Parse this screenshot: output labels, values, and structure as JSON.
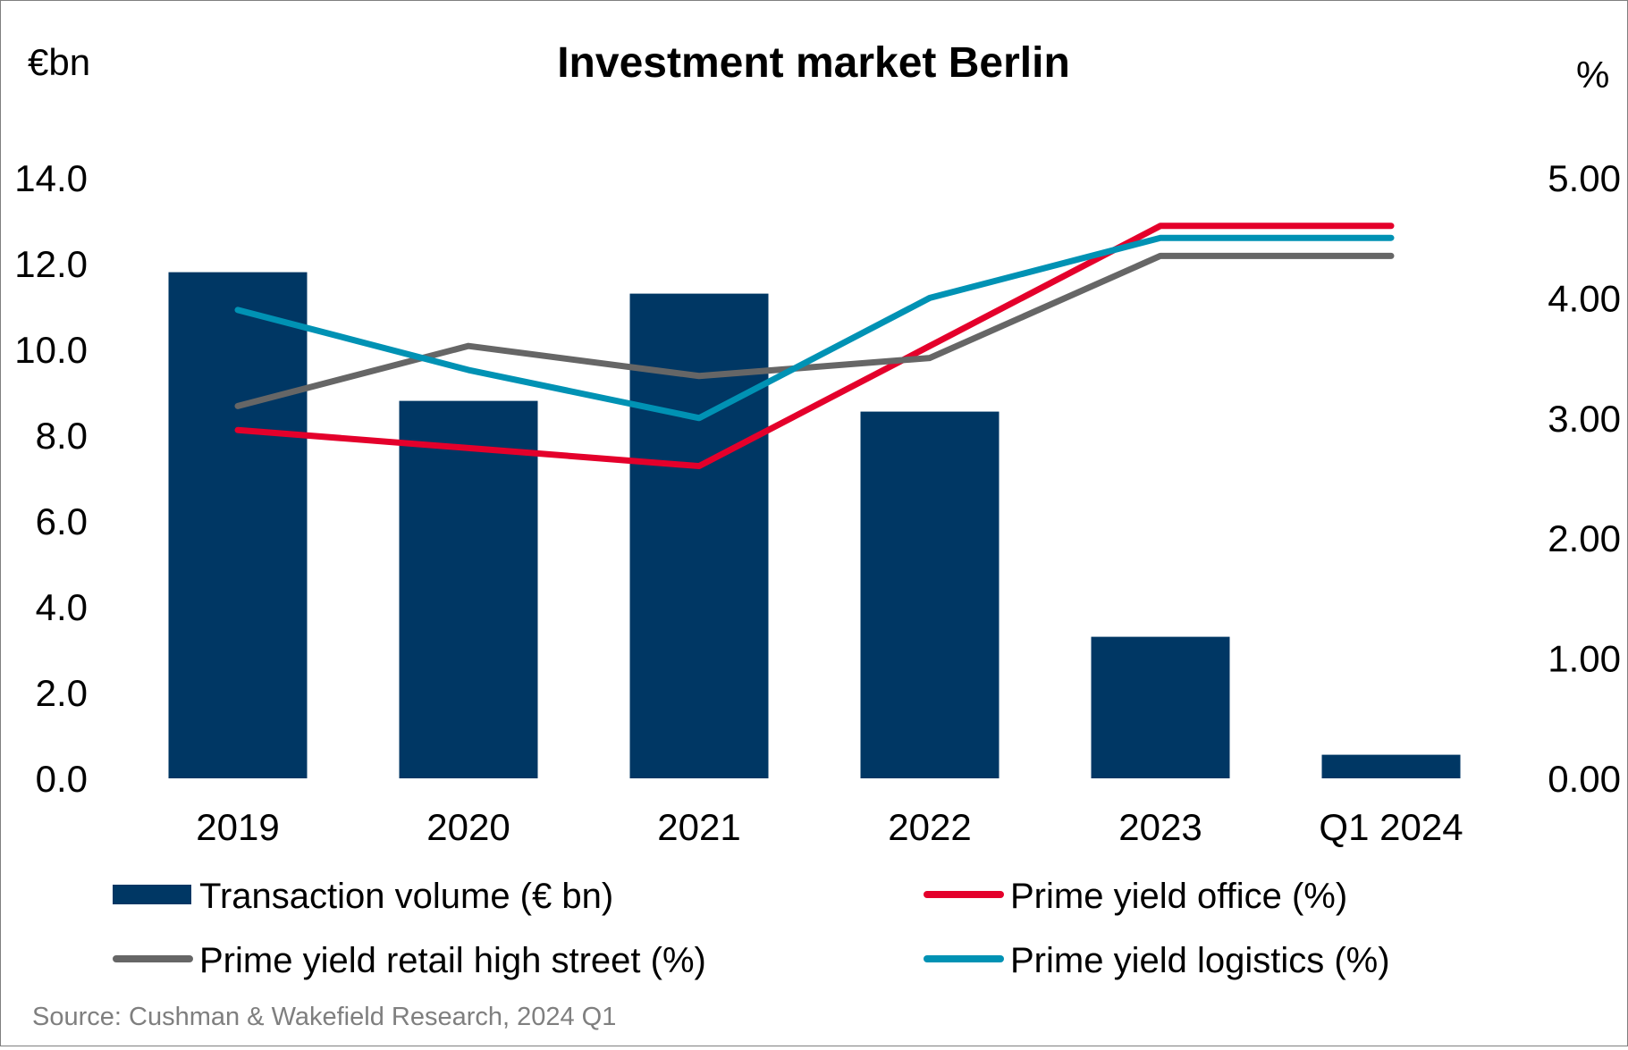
{
  "chart_data": {
    "type": "bar",
    "title": "Investment market Berlin",
    "y_left_unit": "€bn",
    "y_right_unit": "%",
    "categories": [
      "2019",
      "2020",
      "2021",
      "2022",
      "2023",
      "Q1 2024"
    ],
    "y_left": {
      "range": [
        0,
        14
      ],
      "ticks": [
        "0.0",
        "2.0",
        "4.0",
        "6.0",
        "8.0",
        "10.0",
        "12.0",
        "14.0"
      ]
    },
    "y_right": {
      "range": [
        0,
        5
      ],
      "ticks": [
        "0.00",
        "1.00",
        "2.00",
        "3.00",
        "4.00",
        "5.00"
      ]
    },
    "bars": {
      "name": "Transaction volume (€ bn)",
      "color": "#003764",
      "axis": "left",
      "values": [
        11.8,
        8.8,
        11.3,
        8.55,
        3.3,
        0.55
      ]
    },
    "lines": [
      {
        "name": "Prime yield office (%)",
        "color": "#e4002b",
        "axis": "right",
        "values": [
          2.9,
          2.75,
          2.6,
          3.6,
          4.6,
          4.6
        ]
      },
      {
        "name": "Prime yield retail high street (%)",
        "color": "#666666",
        "axis": "right",
        "values": [
          3.1,
          3.6,
          3.35,
          3.5,
          4.35,
          4.35
        ]
      },
      {
        "name": "Prime yield logistics (%)",
        "color": "#0092b4",
        "axis": "right",
        "values": [
          3.9,
          3.4,
          3.0,
          4.0,
          4.5,
          4.5
        ]
      }
    ],
    "grid": false,
    "legend_position": "bottom"
  },
  "source": "Source: Cushman & Wakefield Research, 2024 Q1"
}
